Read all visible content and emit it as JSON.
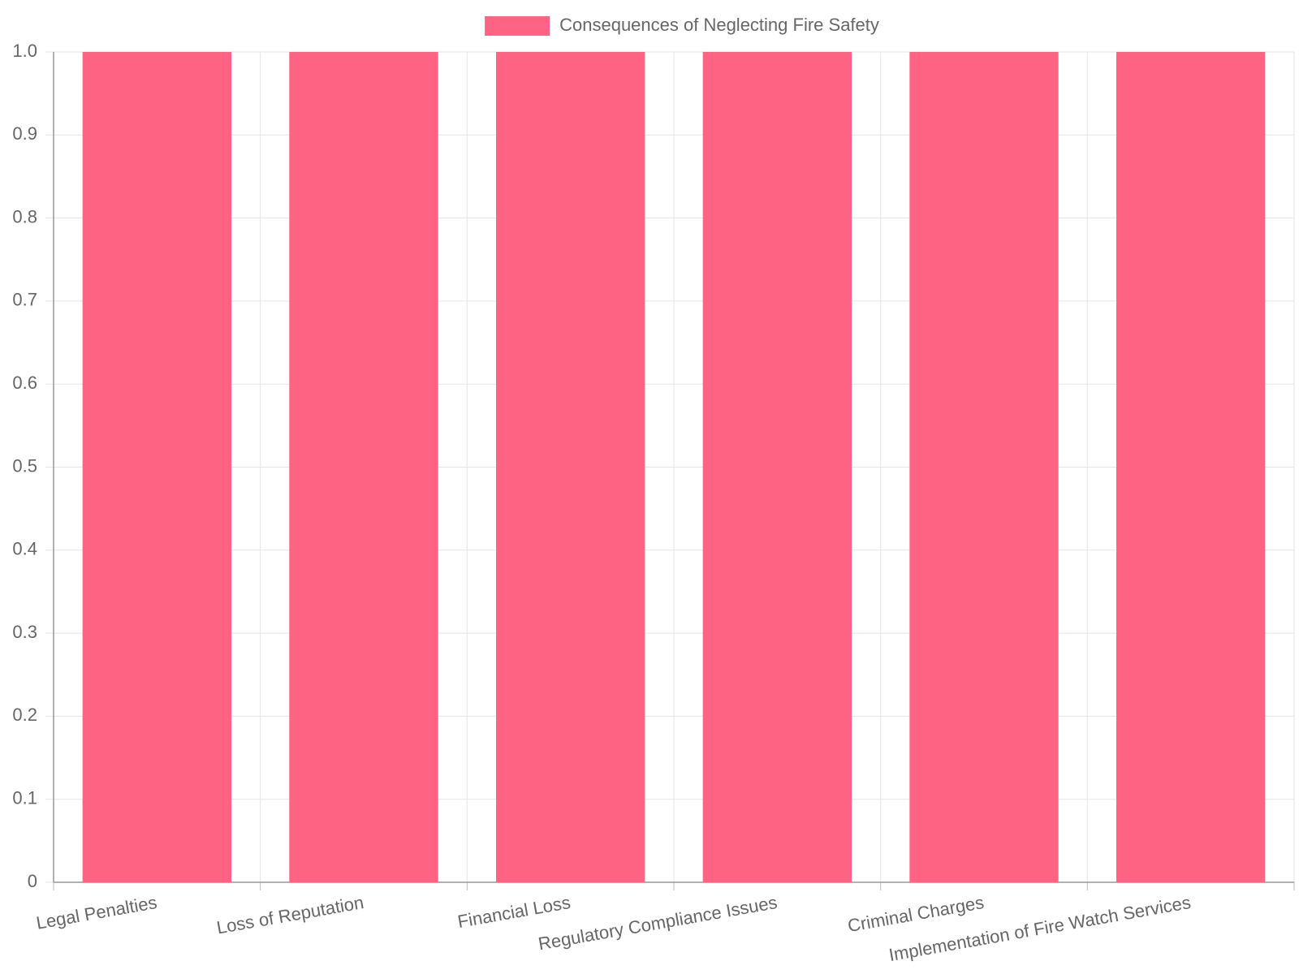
{
  "chart_data": {
    "type": "bar",
    "categories": [
      "Legal Penalties",
      "Loss of Reputation",
      "Financial Loss",
      "Regulatory Compliance Issues",
      "Criminal Charges",
      "Implementation of Fire Watch Services"
    ],
    "series": [
      {
        "name": "Consequences of Neglecting Fire Safety",
        "color": "#ff6384",
        "values": [
          1,
          1,
          1,
          1,
          1,
          1
        ]
      }
    ],
    "ylim": [
      0,
      1
    ],
    "yticks": [
      0,
      0.1,
      0.2,
      0.3,
      0.4,
      0.5,
      0.6,
      0.7,
      0.8,
      0.9,
      {
        "value": 1,
        "label": "1.0"
      }
    ],
    "grid": true,
    "legend": "top"
  }
}
